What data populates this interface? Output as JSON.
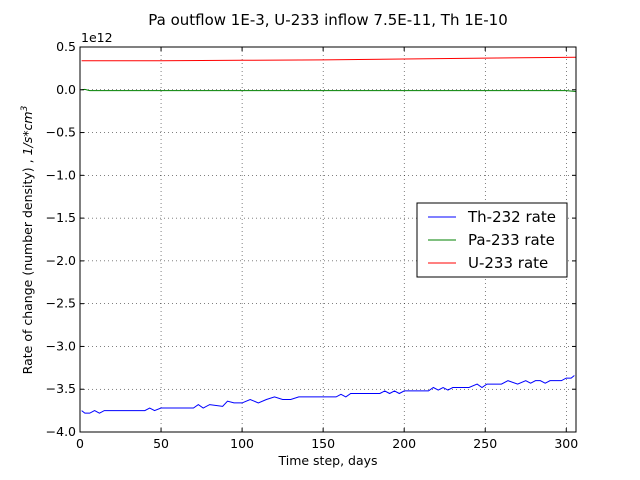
{
  "chart_data": {
    "type": "line",
    "title": "Pa outflow 1E-3, U-233 inflow 7.5E-11, Th 1E-10",
    "xlabel": "Time step, days",
    "ylabel": "Rate of change (number density) , ",
    "ylabel_units": "1/s*cm",
    "ylabel_units_exp": "3",
    "y_offset_label": "1e12",
    "xlim": [
      0,
      306
    ],
    "ylim": [
      -4.0,
      0.5
    ],
    "y_scale_note": "values in units of 1e12",
    "xticks": [
      0,
      50,
      100,
      150,
      200,
      250,
      300
    ],
    "xtick_labels": [
      "0",
      "50",
      "100",
      "150",
      "200",
      "250",
      "300"
    ],
    "yticks": [
      0.5,
      0.0,
      -0.5,
      -1.0,
      -1.5,
      -2.0,
      -2.5,
      -3.0,
      -3.5,
      -4.0
    ],
    "ytick_labels": [
      "0.5",
      "0.0",
      "−0.5",
      "−1.0",
      "−1.5",
      "−2.0",
      "−2.5",
      "−3.0",
      "−3.5",
      "−4.0"
    ],
    "grid": true,
    "legend_position": "center-right",
    "series": [
      {
        "name": "Th-232 rate",
        "color": "#0000ff",
        "x": [
          1,
          3,
          6,
          9,
          12,
          15,
          18,
          30,
          40,
          43,
          46,
          50,
          55,
          70,
          73,
          76,
          80,
          88,
          91,
          95,
          100,
          105,
          110,
          115,
          120,
          125,
          130,
          135,
          140,
          158,
          161,
          164,
          167,
          185,
          188,
          191,
          194,
          197,
          200,
          215,
          218,
          221,
          224,
          227,
          230,
          240,
          245,
          248,
          251,
          255,
          260,
          264,
          270,
          275,
          278,
          281,
          284,
          287,
          290,
          293,
          297,
          300,
          303,
          305
        ],
        "y": [
          -3.75,
          -3.78,
          -3.78,
          -3.75,
          -3.78,
          -3.75,
          -3.75,
          -3.75,
          -3.75,
          -3.72,
          -3.75,
          -3.72,
          -3.72,
          -3.72,
          -3.68,
          -3.72,
          -3.68,
          -3.7,
          -3.64,
          -3.66,
          -3.66,
          -3.62,
          -3.66,
          -3.62,
          -3.59,
          -3.62,
          -3.62,
          -3.59,
          -3.59,
          -3.59,
          -3.56,
          -3.59,
          -3.55,
          -3.55,
          -3.52,
          -3.55,
          -3.52,
          -3.55,
          -3.52,
          -3.52,
          -3.48,
          -3.51,
          -3.48,
          -3.51,
          -3.48,
          -3.48,
          -3.44,
          -3.48,
          -3.44,
          -3.44,
          -3.44,
          -3.4,
          -3.44,
          -3.4,
          -3.43,
          -3.4,
          -3.4,
          -3.43,
          -3.4,
          -3.4,
          -3.4,
          -3.37,
          -3.37,
          -3.34
        ]
      },
      {
        "name": "Pa-233 rate",
        "color": "#008000",
        "x": [
          1,
          3,
          6,
          20,
          50,
          100,
          150,
          200,
          250,
          300,
          306
        ],
        "y": [
          0.0,
          0.005,
          -0.01,
          -0.01,
          -0.01,
          -0.01,
          -0.01,
          -0.01,
          -0.01,
          -0.01,
          -0.02
        ]
      },
      {
        "name": "U-233 rate",
        "color": "#ff0000",
        "x": [
          1,
          50,
          100,
          150,
          200,
          250,
          306
        ],
        "y": [
          0.34,
          0.34,
          0.345,
          0.35,
          0.36,
          0.37,
          0.38
        ]
      }
    ]
  }
}
